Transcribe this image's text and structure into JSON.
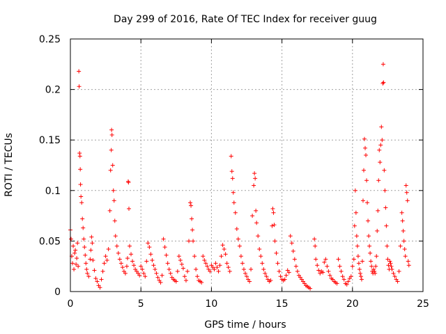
{
  "chart_data": {
    "type": "scatter",
    "title": "Day 299 of 2016, Rate Of TEC Index for receiver guug",
    "xlabel": "GPS time / hours",
    "ylabel": "ROTI / TECUs",
    "xlim": [
      0,
      25
    ],
    "ylim": [
      0,
      0.25
    ],
    "x_ticks": [
      "0",
      "5",
      "10",
      "15",
      "20",
      "25"
    ],
    "y_ticks": [
      "0",
      "0.05",
      "0.1",
      "0.15",
      "0.2",
      "0.25"
    ],
    "grid": true,
    "marker": "plus",
    "color": "#ff0000",
    "series": [
      {
        "name": "ROTI",
        "points": [
          [
            0.0,
            0.061
          ],
          [
            0.05,
            0.052
          ],
          [
            0.1,
            0.035
          ],
          [
            0.15,
            0.028
          ],
          [
            0.2,
            0.045
          ],
          [
            0.25,
            0.022
          ],
          [
            0.3,
            0.038
          ],
          [
            0.35,
            0.041
          ],
          [
            0.4,
            0.027
          ],
          [
            0.45,
            0.033
          ],
          [
            0.5,
            0.048
          ],
          [
            0.55,
            0.025
          ],
          [
            0.6,
            0.218
          ],
          [
            0.62,
            0.203
          ],
          [
            0.65,
            0.137
          ],
          [
            0.68,
            0.134
          ],
          [
            0.7,
            0.121
          ],
          [
            0.72,
            0.106
          ],
          [
            0.75,
            0.094
          ],
          [
            0.8,
            0.088
          ],
          [
            0.85,
            0.072
          ],
          [
            0.9,
            0.063
          ],
          [
            0.95,
            0.052
          ],
          [
            1.0,
            0.044
          ],
          [
            1.05,
            0.036
          ],
          [
            1.1,
            0.028
          ],
          [
            1.15,
            0.022
          ],
          [
            1.2,
            0.018
          ],
          [
            1.3,
            0.015
          ],
          [
            1.4,
            0.032
          ],
          [
            1.45,
            0.041
          ],
          [
            1.5,
            0.054
          ],
          [
            1.55,
            0.048
          ],
          [
            1.6,
            0.031
          ],
          [
            1.7,
            0.021
          ],
          [
            1.8,
            0.013
          ],
          [
            1.9,
            0.01
          ],
          [
            2.0,
            0.006
          ],
          [
            2.1,
            0.004
          ],
          [
            2.2,
            0.012
          ],
          [
            2.3,
            0.02
          ],
          [
            2.4,
            0.028
          ],
          [
            2.5,
            0.035
          ],
          [
            2.6,
            0.031
          ],
          [
            2.7,
            0.042
          ],
          [
            2.8,
            0.08
          ],
          [
            2.85,
            0.12
          ],
          [
            2.9,
            0.14
          ],
          [
            2.92,
            0.16
          ],
          [
            2.95,
            0.155
          ],
          [
            3.0,
            0.125
          ],
          [
            3.05,
            0.1
          ],
          [
            3.1,
            0.09
          ],
          [
            3.15,
            0.07
          ],
          [
            3.2,
            0.055
          ],
          [
            3.3,
            0.045
          ],
          [
            3.4,
            0.038
          ],
          [
            3.5,
            0.032
          ],
          [
            3.6,
            0.028
          ],
          [
            3.7,
            0.024
          ],
          [
            3.8,
            0.02
          ],
          [
            3.9,
            0.018
          ],
          [
            4.0,
            0.025
          ],
          [
            4.05,
            0.033
          ],
          [
            4.1,
            0.109
          ],
          [
            4.12,
            0.108
          ],
          [
            4.15,
            0.082
          ],
          [
            4.2,
            0.045
          ],
          [
            4.3,
            0.037
          ],
          [
            4.4,
            0.03
          ],
          [
            4.5,
            0.026
          ],
          [
            4.6,
            0.022
          ],
          [
            4.7,
            0.02
          ],
          [
            4.8,
            0.018
          ],
          [
            4.9,
            0.016
          ],
          [
            5.0,
            0.025
          ],
          [
            5.1,
            0.022
          ],
          [
            5.2,
            0.018
          ],
          [
            5.3,
            0.015
          ],
          [
            5.4,
            0.03
          ],
          [
            5.5,
            0.048
          ],
          [
            5.6,
            0.044
          ],
          [
            5.7,
            0.037
          ],
          [
            5.8,
            0.031
          ],
          [
            5.9,
            0.026
          ],
          [
            6.0,
            0.022
          ],
          [
            6.1,
            0.018
          ],
          [
            6.2,
            0.014
          ],
          [
            6.3,
            0.011
          ],
          [
            6.4,
            0.009
          ],
          [
            6.5,
            0.016
          ],
          [
            6.6,
            0.052
          ],
          [
            6.7,
            0.044
          ],
          [
            6.8,
            0.036
          ],
          [
            6.9,
            0.028
          ],
          [
            7.0,
            0.022
          ],
          [
            7.1,
            0.018
          ],
          [
            7.2,
            0.014
          ],
          [
            7.3,
            0.012
          ],
          [
            7.4,
            0.011
          ],
          [
            7.5,
            0.01
          ],
          [
            7.6,
            0.02
          ],
          [
            7.7,
            0.035
          ],
          [
            7.8,
            0.031
          ],
          [
            7.9,
            0.027
          ],
          [
            8.0,
            0.023
          ],
          [
            8.1,
            0.015
          ],
          [
            8.2,
            0.011
          ],
          [
            8.3,
            0.02
          ],
          [
            8.4,
            0.05
          ],
          [
            8.5,
            0.088
          ],
          [
            8.55,
            0.085
          ],
          [
            8.6,
            0.072
          ],
          [
            8.65,
            0.061
          ],
          [
            8.7,
            0.05
          ],
          [
            8.8,
            0.035
          ],
          [
            8.9,
            0.022
          ],
          [
            9.0,
            0.015
          ],
          [
            9.1,
            0.011
          ],
          [
            9.2,
            0.01
          ],
          [
            9.3,
            0.009
          ],
          [
            9.4,
            0.035
          ],
          [
            9.5,
            0.031
          ],
          [
            9.6,
            0.028
          ],
          [
            9.7,
            0.025
          ],
          [
            9.8,
            0.022
          ],
          [
            9.9,
            0.02
          ],
          [
            10.0,
            0.026
          ],
          [
            10.1,
            0.024
          ],
          [
            10.2,
            0.022
          ],
          [
            10.3,
            0.028
          ],
          [
            10.4,
            0.024
          ],
          [
            10.5,
            0.02
          ],
          [
            10.6,
            0.026
          ],
          [
            10.7,
            0.035
          ],
          [
            10.8,
            0.046
          ],
          [
            10.9,
            0.042
          ],
          [
            11.0,
            0.037
          ],
          [
            11.1,
            0.028
          ],
          [
            11.2,
            0.024
          ],
          [
            11.3,
            0.02
          ],
          [
            11.4,
            0.134
          ],
          [
            11.45,
            0.119
          ],
          [
            11.5,
            0.112
          ],
          [
            11.55,
            0.098
          ],
          [
            11.6,
            0.088
          ],
          [
            11.7,
            0.078
          ],
          [
            11.8,
            0.062
          ],
          [
            11.9,
            0.052
          ],
          [
            12.0,
            0.045
          ],
          [
            12.1,
            0.035
          ],
          [
            12.2,
            0.028
          ],
          [
            12.3,
            0.022
          ],
          [
            12.4,
            0.018
          ],
          [
            12.5,
            0.015
          ],
          [
            12.6,
            0.012
          ],
          [
            12.7,
            0.01
          ],
          [
            12.8,
            0.022
          ],
          [
            12.9,
            0.075
          ],
          [
            13.0,
            0.105
          ],
          [
            13.05,
            0.117
          ],
          [
            13.1,
            0.112
          ],
          [
            13.15,
            0.08
          ],
          [
            13.2,
            0.068
          ],
          [
            13.3,
            0.055
          ],
          [
            13.4,
            0.042
          ],
          [
            13.5,
            0.035
          ],
          [
            13.6,
            0.028
          ],
          [
            13.7,
            0.022
          ],
          [
            13.8,
            0.018
          ],
          [
            13.9,
            0.015
          ],
          [
            14.0,
            0.012
          ],
          [
            14.1,
            0.01
          ],
          [
            14.2,
            0.011
          ],
          [
            14.3,
            0.065
          ],
          [
            14.35,
            0.082
          ],
          [
            14.4,
            0.078
          ],
          [
            14.45,
            0.066
          ],
          [
            14.5,
            0.05
          ],
          [
            14.6,
            0.038
          ],
          [
            14.7,
            0.028
          ],
          [
            14.8,
            0.02
          ],
          [
            14.9,
            0.015
          ],
          [
            15.0,
            0.012
          ],
          [
            15.1,
            0.011
          ],
          [
            15.2,
            0.012
          ],
          [
            15.3,
            0.016
          ],
          [
            15.4,
            0.021
          ],
          [
            15.5,
            0.019
          ],
          [
            15.6,
            0.055
          ],
          [
            15.7,
            0.048
          ],
          [
            15.8,
            0.04
          ],
          [
            15.9,
            0.032
          ],
          [
            16.0,
            0.025
          ],
          [
            16.1,
            0.02
          ],
          [
            16.2,
            0.016
          ],
          [
            16.3,
            0.014
          ],
          [
            16.4,
            0.012
          ],
          [
            16.5,
            0.01
          ],
          [
            16.6,
            0.008
          ],
          [
            16.7,
            0.006
          ],
          [
            16.8,
            0.005
          ],
          [
            16.9,
            0.004
          ],
          [
            17.0,
            0.003
          ],
          [
            17.3,
            0.052
          ],
          [
            17.35,
            0.045
          ],
          [
            17.4,
            0.032
          ],
          [
            17.5,
            0.026
          ],
          [
            17.6,
            0.021
          ],
          [
            17.7,
            0.018
          ],
          [
            17.8,
            0.02
          ],
          [
            17.9,
            0.019
          ],
          [
            18.0,
            0.029
          ],
          [
            18.1,
            0.032
          ],
          [
            18.2,
            0.025
          ],
          [
            18.3,
            0.02
          ],
          [
            18.4,
            0.016
          ],
          [
            18.5,
            0.013
          ],
          [
            18.6,
            0.012
          ],
          [
            18.7,
            0.01
          ],
          [
            18.8,
            0.009
          ],
          [
            18.9,
            0.008
          ],
          [
            19.0,
            0.032
          ],
          [
            19.1,
            0.025
          ],
          [
            19.2,
            0.02
          ],
          [
            19.3,
            0.015
          ],
          [
            19.4,
            0.012
          ],
          [
            19.5,
            0.008
          ],
          [
            19.6,
            0.007
          ],
          [
            19.7,
            0.01
          ],
          [
            19.8,
            0.013
          ],
          [
            19.9,
            0.015
          ],
          [
            20.0,
            0.025
          ],
          [
            20.1,
            0.032
          ],
          [
            20.15,
            0.065
          ],
          [
            20.2,
            0.1
          ],
          [
            20.25,
            0.078
          ],
          [
            20.3,
            0.055
          ],
          [
            20.35,
            0.045
          ],
          [
            20.4,
            0.035
          ],
          [
            20.45,
            0.028
          ],
          [
            20.5,
            0.022
          ],
          [
            20.55,
            0.018
          ],
          [
            20.6,
            0.015
          ],
          [
            20.65,
            0.012
          ],
          [
            20.7,
            0.03
          ],
          [
            20.75,
            0.09
          ],
          [
            20.8,
            0.12
          ],
          [
            20.85,
            0.151
          ],
          [
            20.9,
            0.142
          ],
          [
            20.95,
            0.135
          ],
          [
            21.0,
            0.11
          ],
          [
            21.05,
            0.088
          ],
          [
            21.1,
            0.07
          ],
          [
            21.15,
            0.055
          ],
          [
            21.2,
            0.045
          ],
          [
            21.25,
            0.038
          ],
          [
            21.3,
            0.03
          ],
          [
            21.35,
            0.025
          ],
          [
            21.4,
            0.02
          ],
          [
            21.45,
            0.018
          ],
          [
            21.5,
            0.022
          ],
          [
            21.55,
            0.02
          ],
          [
            21.6,
            0.018
          ],
          [
            21.65,
            0.025
          ],
          [
            21.7,
            0.035
          ],
          [
            21.75,
            0.06
          ],
          [
            21.8,
            0.08
          ],
          [
            21.85,
            0.11
          ],
          [
            21.9,
            0.14
          ],
          [
            21.95,
            0.128
          ],
          [
            22.0,
            0.145
          ],
          [
            22.05,
            0.163
          ],
          [
            22.1,
            0.15
          ],
          [
            22.15,
            0.206
          ],
          [
            22.18,
            0.225
          ],
          [
            22.2,
            0.207
          ],
          [
            22.25,
            0.12
          ],
          [
            22.3,
            0.1
          ],
          [
            22.35,
            0.083
          ],
          [
            22.4,
            0.065
          ],
          [
            22.45,
            0.045
          ],
          [
            22.5,
            0.032
          ],
          [
            22.55,
            0.026
          ],
          [
            22.6,
            0.022
          ],
          [
            22.65,
            0.03
          ],
          [
            22.7,
            0.028
          ],
          [
            22.75,
            0.025
          ],
          [
            22.8,
            0.022
          ],
          [
            22.9,
            0.018
          ],
          [
            23.0,
            0.015
          ],
          [
            23.1,
            0.012
          ],
          [
            23.2,
            0.01
          ],
          [
            23.3,
            0.02
          ],
          [
            23.4,
            0.045
          ],
          [
            23.5,
            0.078
          ],
          [
            23.55,
            0.07
          ],
          [
            23.6,
            0.06
          ],
          [
            23.65,
            0.05
          ],
          [
            23.7,
            0.042
          ],
          [
            23.75,
            0.035
          ],
          [
            23.8,
            0.105
          ],
          [
            23.85,
            0.098
          ],
          [
            23.9,
            0.09
          ],
          [
            23.95,
            0.03
          ],
          [
            24.0,
            0.026
          ]
        ]
      }
    ]
  }
}
